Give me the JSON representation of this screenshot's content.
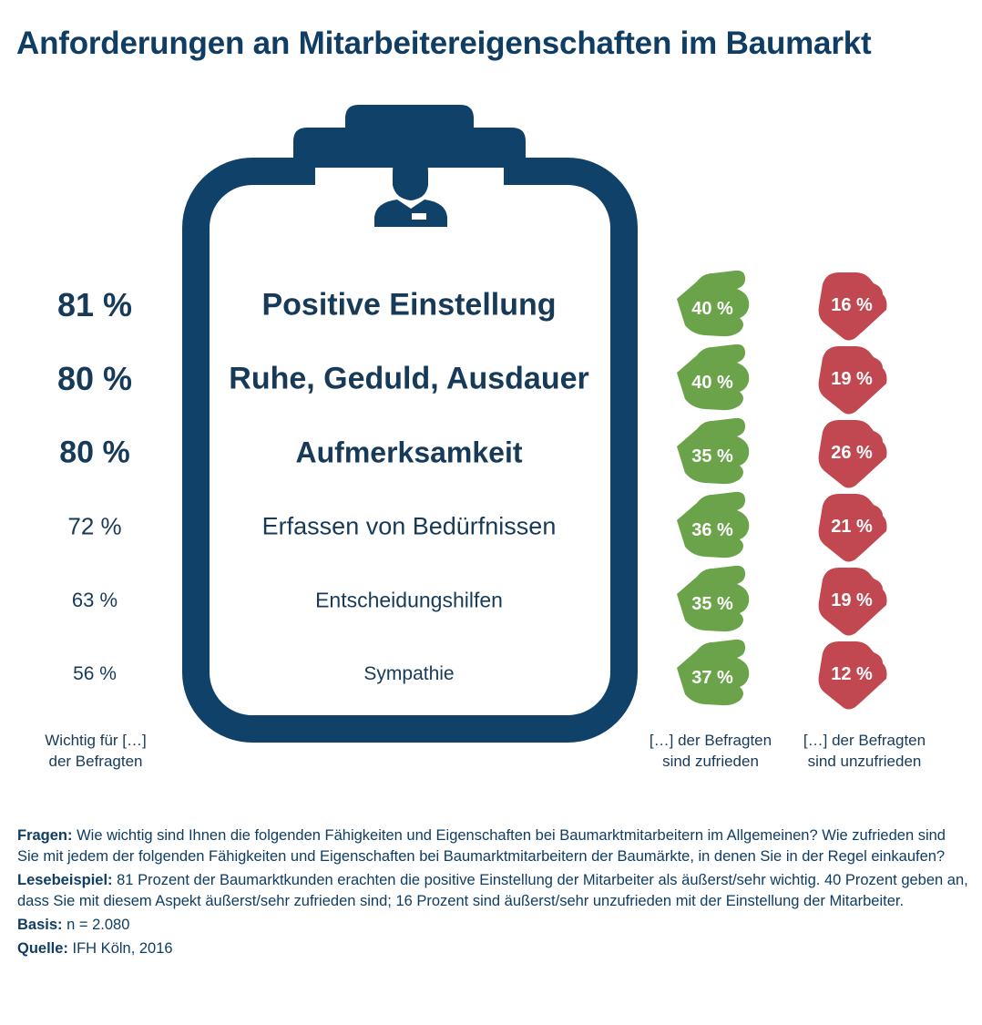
{
  "title": "Anforderungen an Mitarbeitereigenschaften im Baumarkt",
  "colors": {
    "navy": "#0f4169",
    "green": "#6aa34a",
    "red": "#c14850",
    "text": "#173a59"
  },
  "chart_data": {
    "type": "table",
    "columns": [
      "Wichtig für […] der Befragten",
      "[…] der Befragten sind zufrieden",
      "[…] der Befragten sind unzufrieden"
    ],
    "rows": [
      {
        "attribute": "Positive Einstellung",
        "important": "81 %",
        "satisfied": "40 %",
        "dissatisfied": "16 %",
        "important_value": 81,
        "satisfied_value": 40,
        "dissatisfied_value": 16,
        "emphasis": "bold"
      },
      {
        "attribute": "Ruhe, Geduld, Ausdauer",
        "important": "80 %",
        "satisfied": "40 %",
        "dissatisfied": "19 %",
        "important_value": 80,
        "satisfied_value": 40,
        "dissatisfied_value": 19,
        "emphasis": "bold"
      },
      {
        "attribute": "Aufmerksamkeit",
        "important": "80 %",
        "satisfied": "35 %",
        "dissatisfied": "26 %",
        "important_value": 80,
        "satisfied_value": 35,
        "dissatisfied_value": 26,
        "emphasis": "bold"
      },
      {
        "attribute": "Erfassen von Bedürfnissen",
        "important": "72 %",
        "satisfied": "36 %",
        "dissatisfied": "21 %",
        "important_value": 72,
        "satisfied_value": 36,
        "dissatisfied_value": 21,
        "emphasis": "normal"
      },
      {
        "attribute": "Entscheidungshilfen",
        "important": "63 %",
        "satisfied": "35 %",
        "dissatisfied": "19 %",
        "important_value": 63,
        "satisfied_value": 35,
        "dissatisfied_value": 19,
        "emphasis": "normal"
      },
      {
        "attribute": "Sympathie",
        "important": "56 %",
        "satisfied": "37 %",
        "dissatisfied": "12 %",
        "important_value": 56,
        "satisfied_value": 37,
        "dissatisfied_value": 12,
        "emphasis": "normal"
      }
    ],
    "icons": {
      "board": "clipboard-icon",
      "person": "person-icon",
      "satisfied": "thumbs-up-icon",
      "dissatisfied": "thumbs-down-icon"
    }
  },
  "footer_labels": {
    "important": [
      "Wichtig für […]",
      "der Befragten"
    ],
    "satisfied": [
      "[…] der Befragten",
      "sind zufrieden"
    ],
    "dissatisfied": [
      "[…] der Befragten",
      "sind unzufrieden"
    ]
  },
  "notes": {
    "fragen_label": "Fragen:",
    "fragen_text": " Wie wichtig sind Ihnen die folgenden Fähigkeiten und Eigenschaften bei Baumarktmitarbeitern im Allgemeinen? Wie zufrieden sind Sie mit jedem der folgenden Fähigkeiten und Eigenschaften bei Baumarktmitarbeitern der Baumärkte, in denen Sie in der Regel einkaufen?",
    "lese_label": "Lesebeispiel:",
    "lese_text": " 81 Prozent der Baumarktkunden erachten die positive Einstellung der Mitarbeiter als äußerst/sehr wichtig. 40 Prozent geben an, dass Sie mit diesem Aspekt äußerst/sehr zufrieden sind; 16 Prozent sind äußerst/sehr unzufrieden mit der Einstellung der Mitarbeiter.",
    "basis_label": "Basis:",
    "basis_text": " n = 2.080",
    "quelle_label": "Quelle:",
    "quelle_text": " IFH Köln, 2016"
  }
}
